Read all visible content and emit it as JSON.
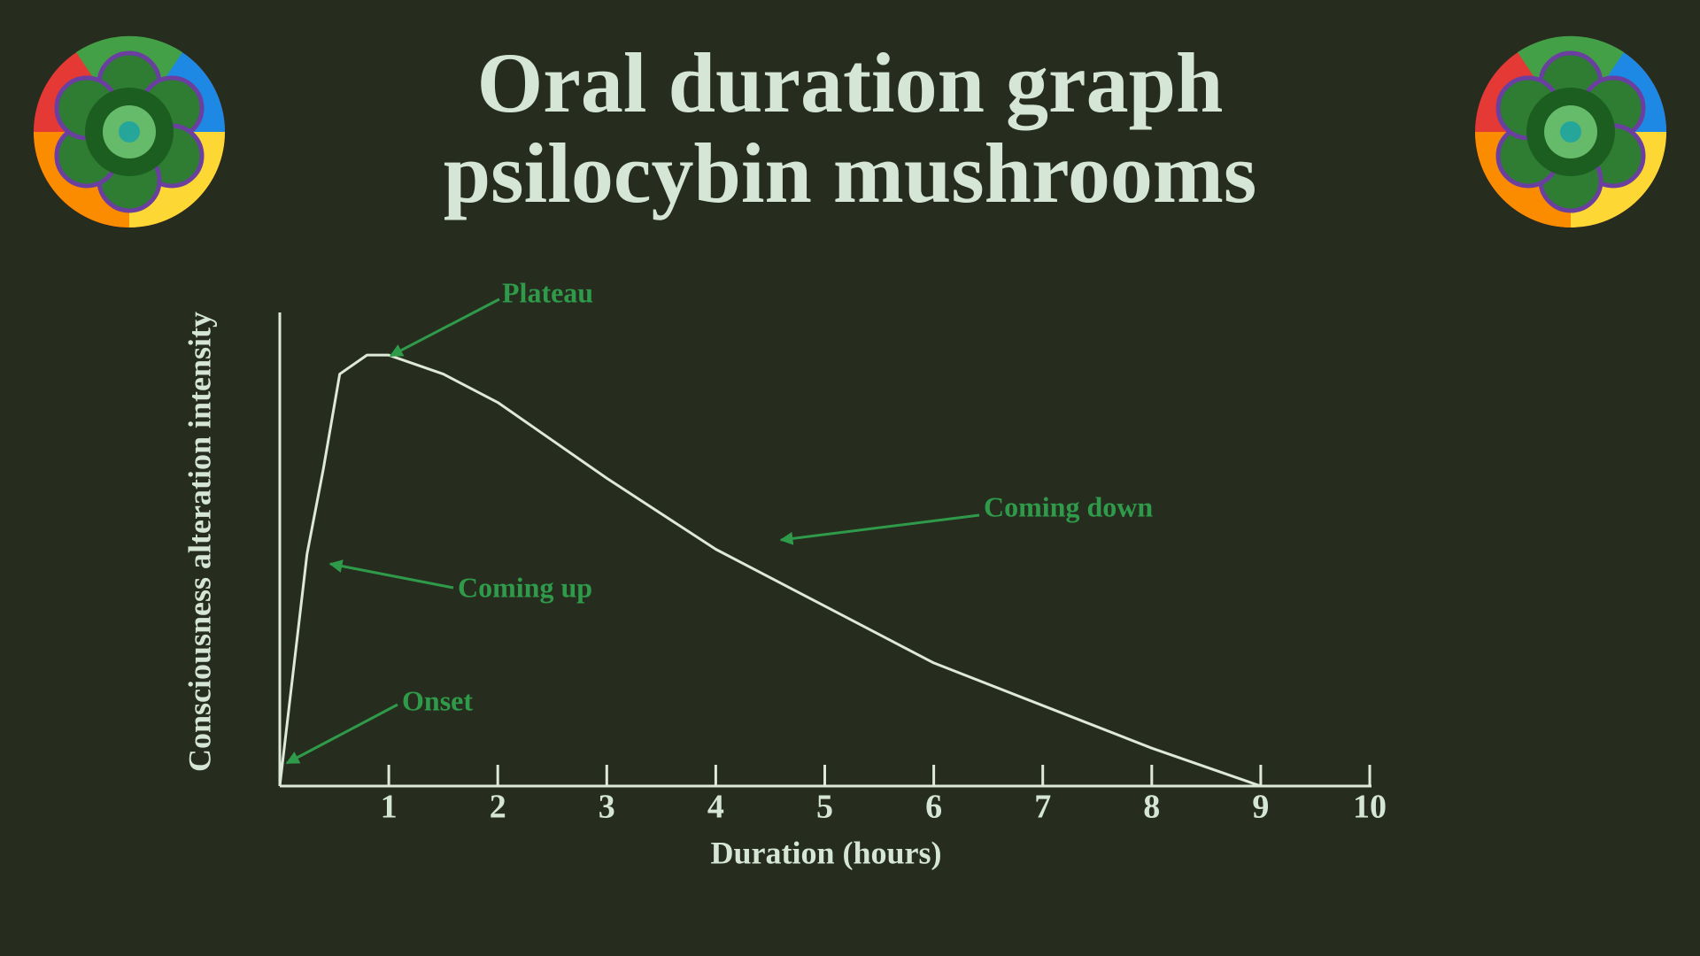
{
  "chart_data": {
    "type": "line",
    "title": [
      "Oral duration graph",
      "psilocybin mushrooms"
    ],
    "x_label": "Duration (hours)",
    "y_label": "Consciousness alteration intensity",
    "x": [
      0,
      0.25,
      0.4,
      0.55,
      0.8,
      1,
      1.5,
      2,
      2.5,
      3,
      4,
      5,
      6,
      7,
      8,
      9
    ],
    "values": [
      0,
      49,
      67,
      87,
      91,
      91,
      87,
      81,
      73,
      65,
      50,
      38,
      26,
      17,
      8,
      0
    ],
    "color": "#dfe9d8",
    "xlim": [
      0,
      10
    ],
    "xticks": [
      1,
      2,
      3,
      4,
      5,
      6,
      7,
      8,
      9,
      10
    ],
    "ylim": [
      0,
      100
    ],
    "annotations": [
      "Plateau",
      "Coming down",
      "Coming up",
      "Onset"
    ],
    "annotation_color": "#2e9a4a"
  }
}
